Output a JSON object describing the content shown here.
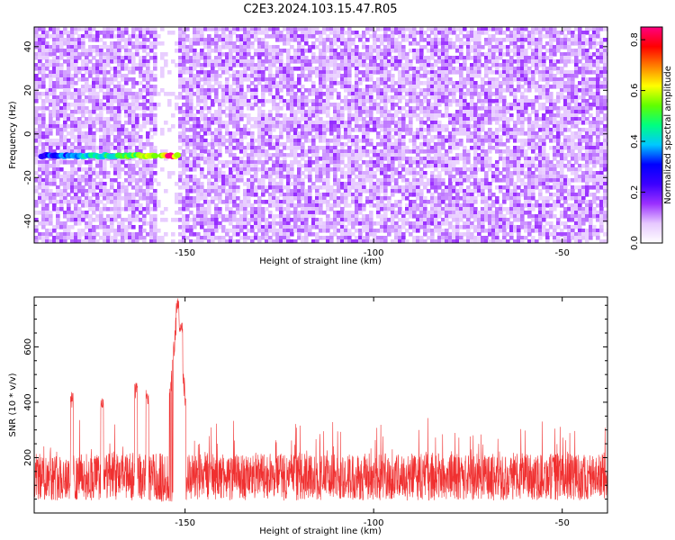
{
  "title": "C2E3.2024.103.15.47.R05",
  "chart_data": [
    {
      "type": "heatmap",
      "xlabel": "Height of straight line (km)",
      "ylabel": "Frequency (Hz)",
      "colorbar_label": "Normalized spectral amplitude",
      "xlim": [
        -190,
        -38
      ],
      "ylim": [
        -50,
        49
      ],
      "xticks": [
        -150,
        -100,
        -50
      ],
      "yticks": [
        -40,
        -20,
        0,
        20,
        40
      ],
      "clim": [
        0,
        0.85
      ],
      "cticks": [
        "0.0",
        "0.2",
        "0.4",
        "0.6",
        "0.8"
      ],
      "colormap": [
        "#ffffff",
        "#e6c8ff",
        "#9b30ff",
        "#3c00ff",
        "#0000ff",
        "#00c8ff",
        "#00ff80",
        "#60ff00",
        "#ffff00",
        "#ff8000",
        "#ff0000",
        "#ff0080"
      ],
      "signal_band": {
        "x_range": [
          -188,
          -152
        ],
        "frequency": -10,
        "peak_x": -154,
        "peak_amplitude": 0.85
      },
      "gap": {
        "x_range": [
          -158,
          -152
        ]
      }
    },
    {
      "type": "line",
      "xlabel": "Height of straight line (km)",
      "ylabel": "SNR (10 * v/v)",
      "xlim": [
        -190,
        -38
      ],
      "ylim": [
        0,
        780
      ],
      "xticks": [
        -150,
        -100,
        -50
      ],
      "yticks": [
        200,
        400,
        600
      ],
      "color": "#f03030",
      "baseline": 130,
      "peak": {
        "x": -152,
        "y": 780
      },
      "features": [
        {
          "x": -163,
          "y": 470
        },
        {
          "x": -160,
          "y": 450
        },
        {
          "x": -180,
          "y": 440
        },
        {
          "x": -172,
          "y": 420
        },
        {
          "x": -152,
          "y": 780
        },
        {
          "x": -151,
          "y": 700
        }
      ]
    }
  ]
}
